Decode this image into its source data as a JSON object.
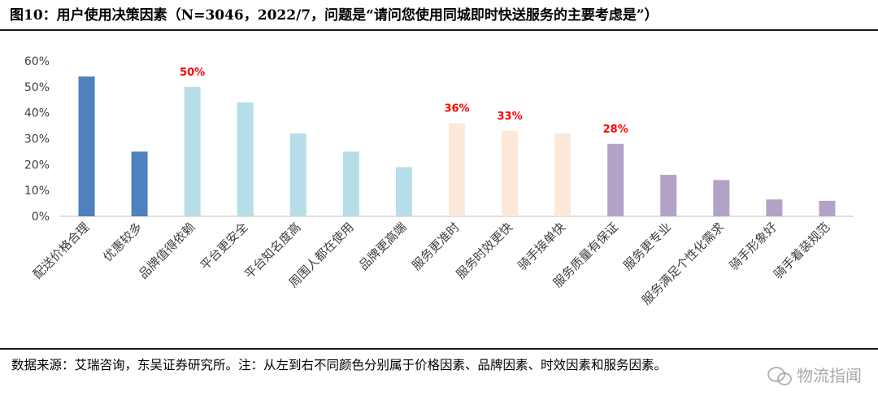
{
  "title": "图10：用户使用决策因素（N=3046，2022/7，问题是“请问您使用同城即时快送服务的主要考虑是”）",
  "source": "数据来源：艾瑞咨询，东吴证券研究所。注：从左到右不同颜色分别属于价格因素、品牌因素、时效因素和服务因素。",
  "watermark": "物流指闻",
  "chart_data": {
    "type": "bar",
    "categories": [
      "配送价格合理",
      "优惠较多",
      "品牌值得依赖",
      "平台更安全",
      "平台知名度高",
      "周围人都在使用",
      "品牌更高端",
      "服务更准时",
      "服务时效更快",
      "骑手接单快",
      "服务质量有保证",
      "服务更专业",
      "服务满足个性化需求",
      "骑手形象好",
      "骑手着装规范"
    ],
    "values": [
      54,
      25,
      50,
      44,
      32,
      25,
      19,
      36,
      33,
      32,
      28,
      16,
      14,
      6.5,
      6
    ],
    "colors": [
      "#4e81bd",
      "#4e81bd",
      "#b7dde8",
      "#b7dde8",
      "#b7dde8",
      "#b7dde8",
      "#b7dde8",
      "#fde9d9",
      "#fde9d9",
      "#fde9d9",
      "#b2a2c7",
      "#b2a2c7",
      "#b2a2c7",
      "#b2a2c7",
      "#b2a2c7"
    ],
    "data_labels": [
      {
        "index": 2,
        "text": "50%"
      },
      {
        "index": 7,
        "text": "36%"
      },
      {
        "index": 8,
        "text": "33%"
      },
      {
        "index": 10,
        "text": "28%"
      }
    ],
    "data_label_color": "#ff0000",
    "yticks": [
      "0%",
      "10%",
      "20%",
      "30%",
      "40%",
      "50%",
      "60%"
    ],
    "ylim": [
      0,
      60
    ],
    "grid": false,
    "legend": "none"
  }
}
